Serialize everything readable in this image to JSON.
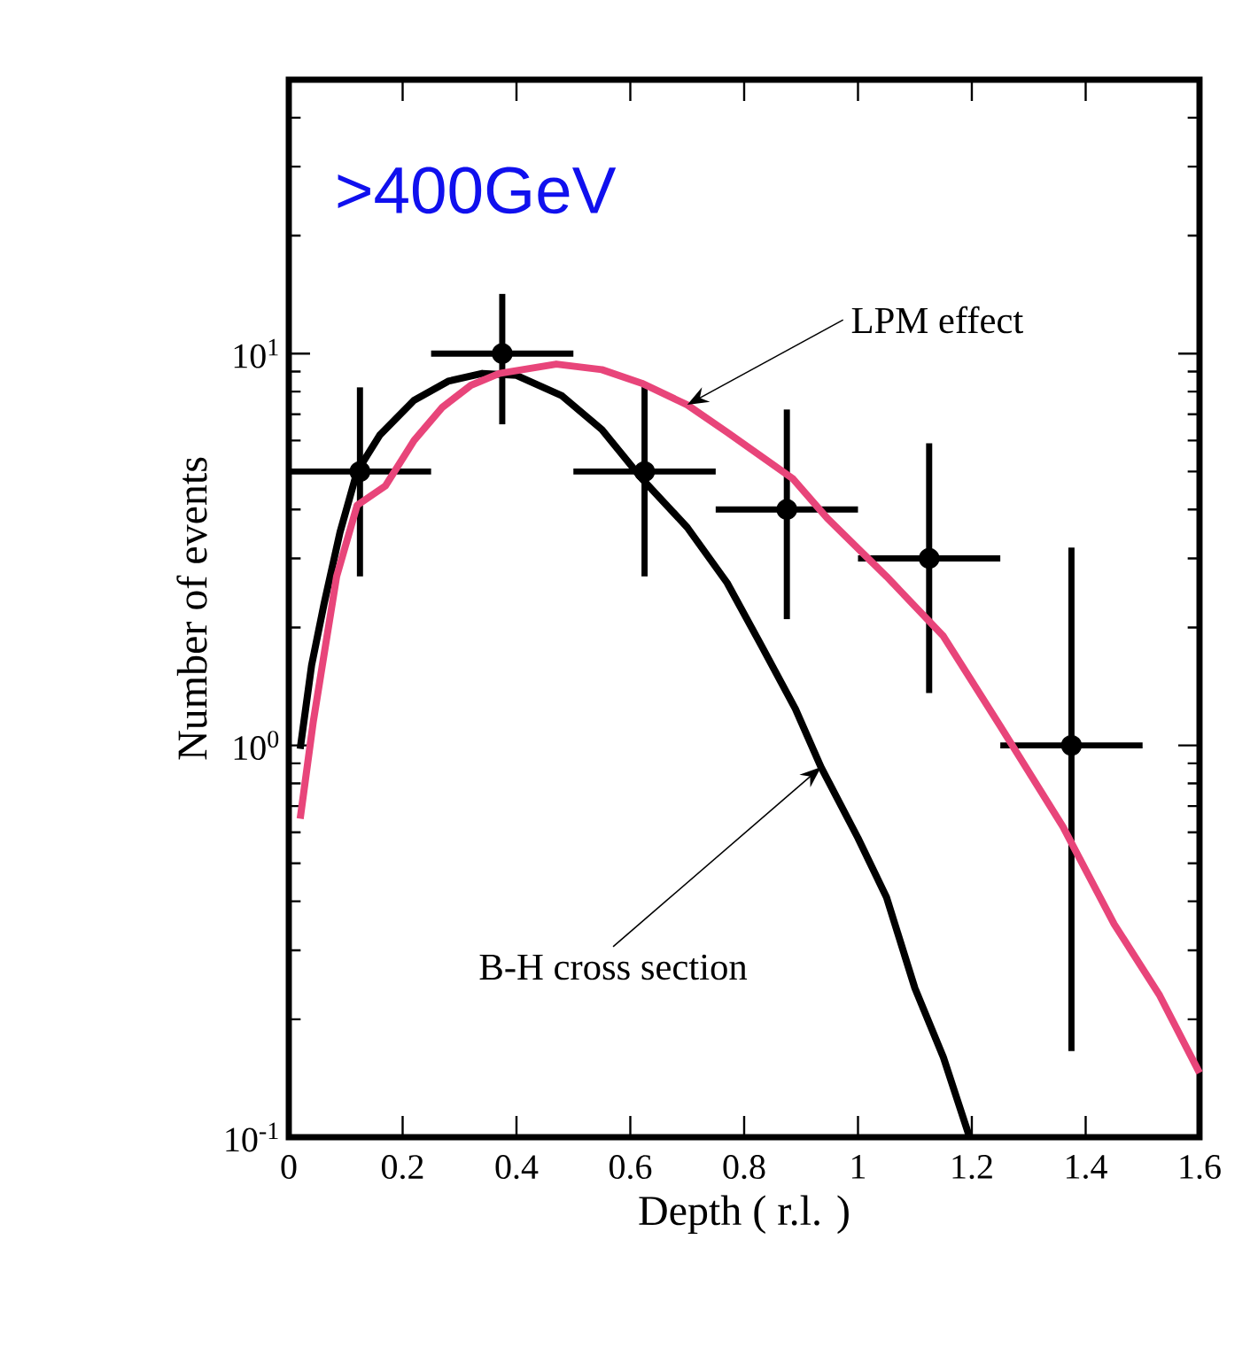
{
  "chart_data": {
    "type": "scatter",
    "title": ">400GeV",
    "xlabel": "Depth ( r.l. )",
    "ylabel": "Number of events",
    "log": "y",
    "xlim": [
      0,
      1.6
    ],
    "ylim": [
      0.1,
      50
    ],
    "xticks": [
      0,
      0.2,
      0.4,
      0.6,
      0.8,
      1,
      1.2,
      1.4,
      1.6
    ],
    "yticks": [
      {
        "value": 0.1,
        "label": "10$^{-1}$"
      },
      {
        "value": 1,
        "label": "10$^{0}$"
      },
      {
        "value": 10,
        "label": "10$^{1}$"
      }
    ],
    "annotations": [
      {
        "text": "LPM effect",
        "x": 0.7,
        "y": 7.4
      },
      {
        "text": "B-H cross section",
        "x": 0.935,
        "y": 0.88
      }
    ],
    "series": [
      {
        "color": "#000000",
        "marker": "circle",
        "x": [
          0.125,
          0.375,
          0.625,
          0.875,
          1.125,
          1.375
        ],
        "values": [
          5,
          10,
          5,
          4,
          3,
          1
        ],
        "errors": [
          [
            2.7,
            8.2
          ],
          [
            6.6,
            14.2
          ],
          [
            2.7,
            8.4
          ],
          [
            2.1,
            7.2
          ],
          [
            1.36,
            5.9
          ],
          [
            0.166,
            3.2
          ]
        ],
        "xerrors": [
          0.125,
          0.125,
          0.125,
          0.125,
          0.125,
          0.125
        ]
      },
      {
        "type": "line",
        "color": "#000000",
        "x": [
          0.02,
          0.04,
          0.062,
          0.09,
          0.12,
          0.16,
          0.22,
          0.28,
          0.34,
          0.4,
          0.48,
          0.55,
          0.62,
          0.7,
          0.77,
          0.83,
          0.89,
          0.935,
          1.0,
          1.05,
          1.1,
          1.15,
          1.196
        ],
        "values": [
          0.98,
          1.6,
          2.3,
          3.5,
          5,
          6.2,
          7.6,
          8.5,
          8.9,
          8.8,
          7.8,
          6.4,
          4.8,
          3.6,
          2.6,
          1.8,
          1.24,
          0.88,
          0.58,
          0.41,
          0.24,
          0.16,
          0.1
        ]
      },
      {
        "type": "line",
        "color": "#e8457a",
        "x": [
          0.02,
          0.043,
          0.084,
          0.12,
          0.17,
          0.22,
          0.27,
          0.32,
          0.37,
          0.47,
          0.55,
          0.62,
          0.7,
          0.77,
          0.885,
          0.946,
          1.05,
          1.15,
          1.25,
          1.36,
          1.45,
          1.53,
          1.6
        ],
        "values": [
          0.65,
          1.15,
          2.7,
          4.1,
          4.6,
          6.0,
          7.3,
          8.3,
          8.9,
          9.4,
          9.1,
          8.4,
          7.4,
          6.3,
          4.8,
          3.8,
          2.7,
          1.9,
          1.12,
          0.62,
          0.35,
          0.23,
          0.146
        ]
      }
    ]
  }
}
